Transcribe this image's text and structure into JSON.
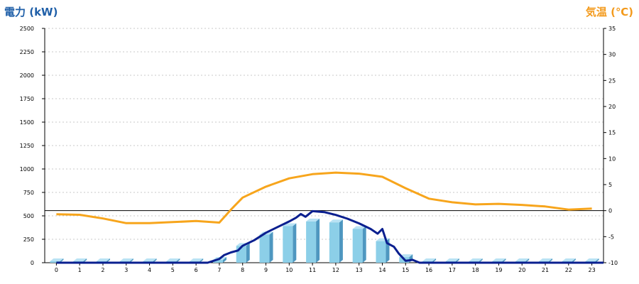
{
  "colors": {
    "power_title": "#1f5fa8",
    "temp_title": "#f39a1c",
    "bar_front": "#8ccfe8",
    "bar_side": "#4e97c0",
    "bar_top": "#b9e2f4",
    "power_line": "#0a1f8f",
    "temp_line": "#f7a51c",
    "grid": "#c8c8c8"
  },
  "chart_data": {
    "type": "bar",
    "left_axis_title": "電力 (kW)",
    "right_axis_title": "気温 (℃)",
    "categories": [
      "0",
      "1",
      "2",
      "3",
      "4",
      "5",
      "6",
      "7",
      "8",
      "9",
      "10",
      "11",
      "12",
      "13",
      "14",
      "15",
      "16",
      "17",
      "18",
      "19",
      "20",
      "21",
      "22",
      "23"
    ],
    "y_left": {
      "min": 0,
      "max": 2500,
      "ticks": [
        0,
        250,
        500,
        750,
        1000,
        1250,
        1500,
        1750,
        2000,
        2250,
        2500
      ]
    },
    "y_right": {
      "min": -10,
      "max": 35,
      "ticks": [
        -10,
        -5,
        0,
        5,
        10,
        15,
        20,
        25,
        30,
        35
      ]
    },
    "zero_reference": 0,
    "grid": true,
    "bars": {
      "axis": "left",
      "values": [
        0,
        0,
        0,
        0,
        0,
        0,
        0,
        30,
        180,
        300,
        390,
        440,
        430,
        360,
        230,
        60,
        0,
        0,
        0,
        0,
        0,
        0,
        0,
        0
      ]
    },
    "power_line": {
      "axis": "left",
      "x": [
        0,
        6,
        6.5,
        7,
        7.2,
        7.5,
        7.8,
        8,
        8.5,
        9,
        9.5,
        10,
        10.3,
        10.5,
        10.7,
        11,
        11.5,
        12,
        12.5,
        13,
        13.5,
        13.8,
        14,
        14.2,
        14.5,
        14.7,
        15,
        15.3,
        15.6,
        16,
        23.5
      ],
      "y": [
        0,
        0,
        0,
        40,
        80,
        110,
        130,
        180,
        240,
        320,
        380,
        440,
        480,
        520,
        490,
        550,
        540,
        510,
        470,
        420,
        360,
        310,
        360,
        210,
        170,
        100,
        20,
        30,
        0,
        0,
        0
      ]
    },
    "temp_line": {
      "axis": "right",
      "x": [
        0,
        1,
        2,
        3,
        4,
        5,
        6,
        7,
        7.5,
        8,
        9,
        10,
        11,
        12,
        13,
        14,
        15,
        16,
        17,
        18,
        19,
        20,
        21,
        22,
        23
      ],
      "y": [
        -0.7,
        -0.8,
        -1.5,
        -2.4,
        -2.4,
        -2.2,
        -2.0,
        -2.3,
        0.2,
        2.5,
        4.6,
        6.2,
        7.0,
        7.3,
        7.1,
        6.5,
        4.3,
        2.3,
        1.6,
        1.2,
        1.3,
        1.1,
        0.8,
        0.2,
        0.4
      ]
    }
  }
}
